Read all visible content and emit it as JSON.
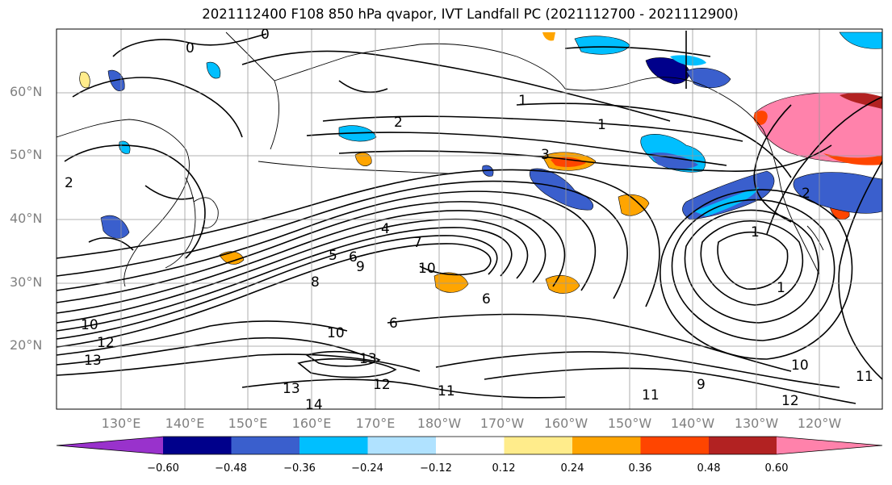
{
  "title": "2021112400 F108 850 hPa qvapor, IVT Landfall PC (2021112700 - 2021112900)",
  "lat_labels": [
    "60°N",
    "50°N",
    "40°N",
    "30°N",
    "20°N"
  ],
  "lon_labels": [
    "130°E",
    "140°E",
    "150°E",
    "160°E",
    "170°E",
    "180°W",
    "170°W",
    "160°W",
    "150°W",
    "140°W",
    "130°W",
    "120°W"
  ],
  "colorbar": {
    "ticks": [
      "−0.60",
      "−0.48",
      "−0.36",
      "−0.24",
      "−0.12",
      "0.12",
      "0.24",
      "0.36",
      "0.48",
      "0.60"
    ],
    "colors": [
      "#9932cc",
      "#00008b",
      "#3a5fcd",
      "#00bfff",
      "#b0e2ff",
      "#ffffff",
      "#ffec8b",
      "#ffa500",
      "#ff4500",
      "#b22222",
      "#ff82ab"
    ]
  },
  "contour_labels": [
    "0",
    "0",
    "2",
    "1",
    "3",
    "2",
    "1",
    "4",
    "5",
    "6",
    "7",
    "9",
    "10",
    "8",
    "10",
    "6",
    "6",
    "1",
    "1",
    "10",
    "12",
    "13",
    "14",
    "12",
    "11",
    "11",
    "9",
    "10",
    "11",
    "12",
    "13",
    "13",
    "2"
  ],
  "colors": {
    "positive_strong": "#ff4500",
    "negative": "#3a5fcd"
  }
}
